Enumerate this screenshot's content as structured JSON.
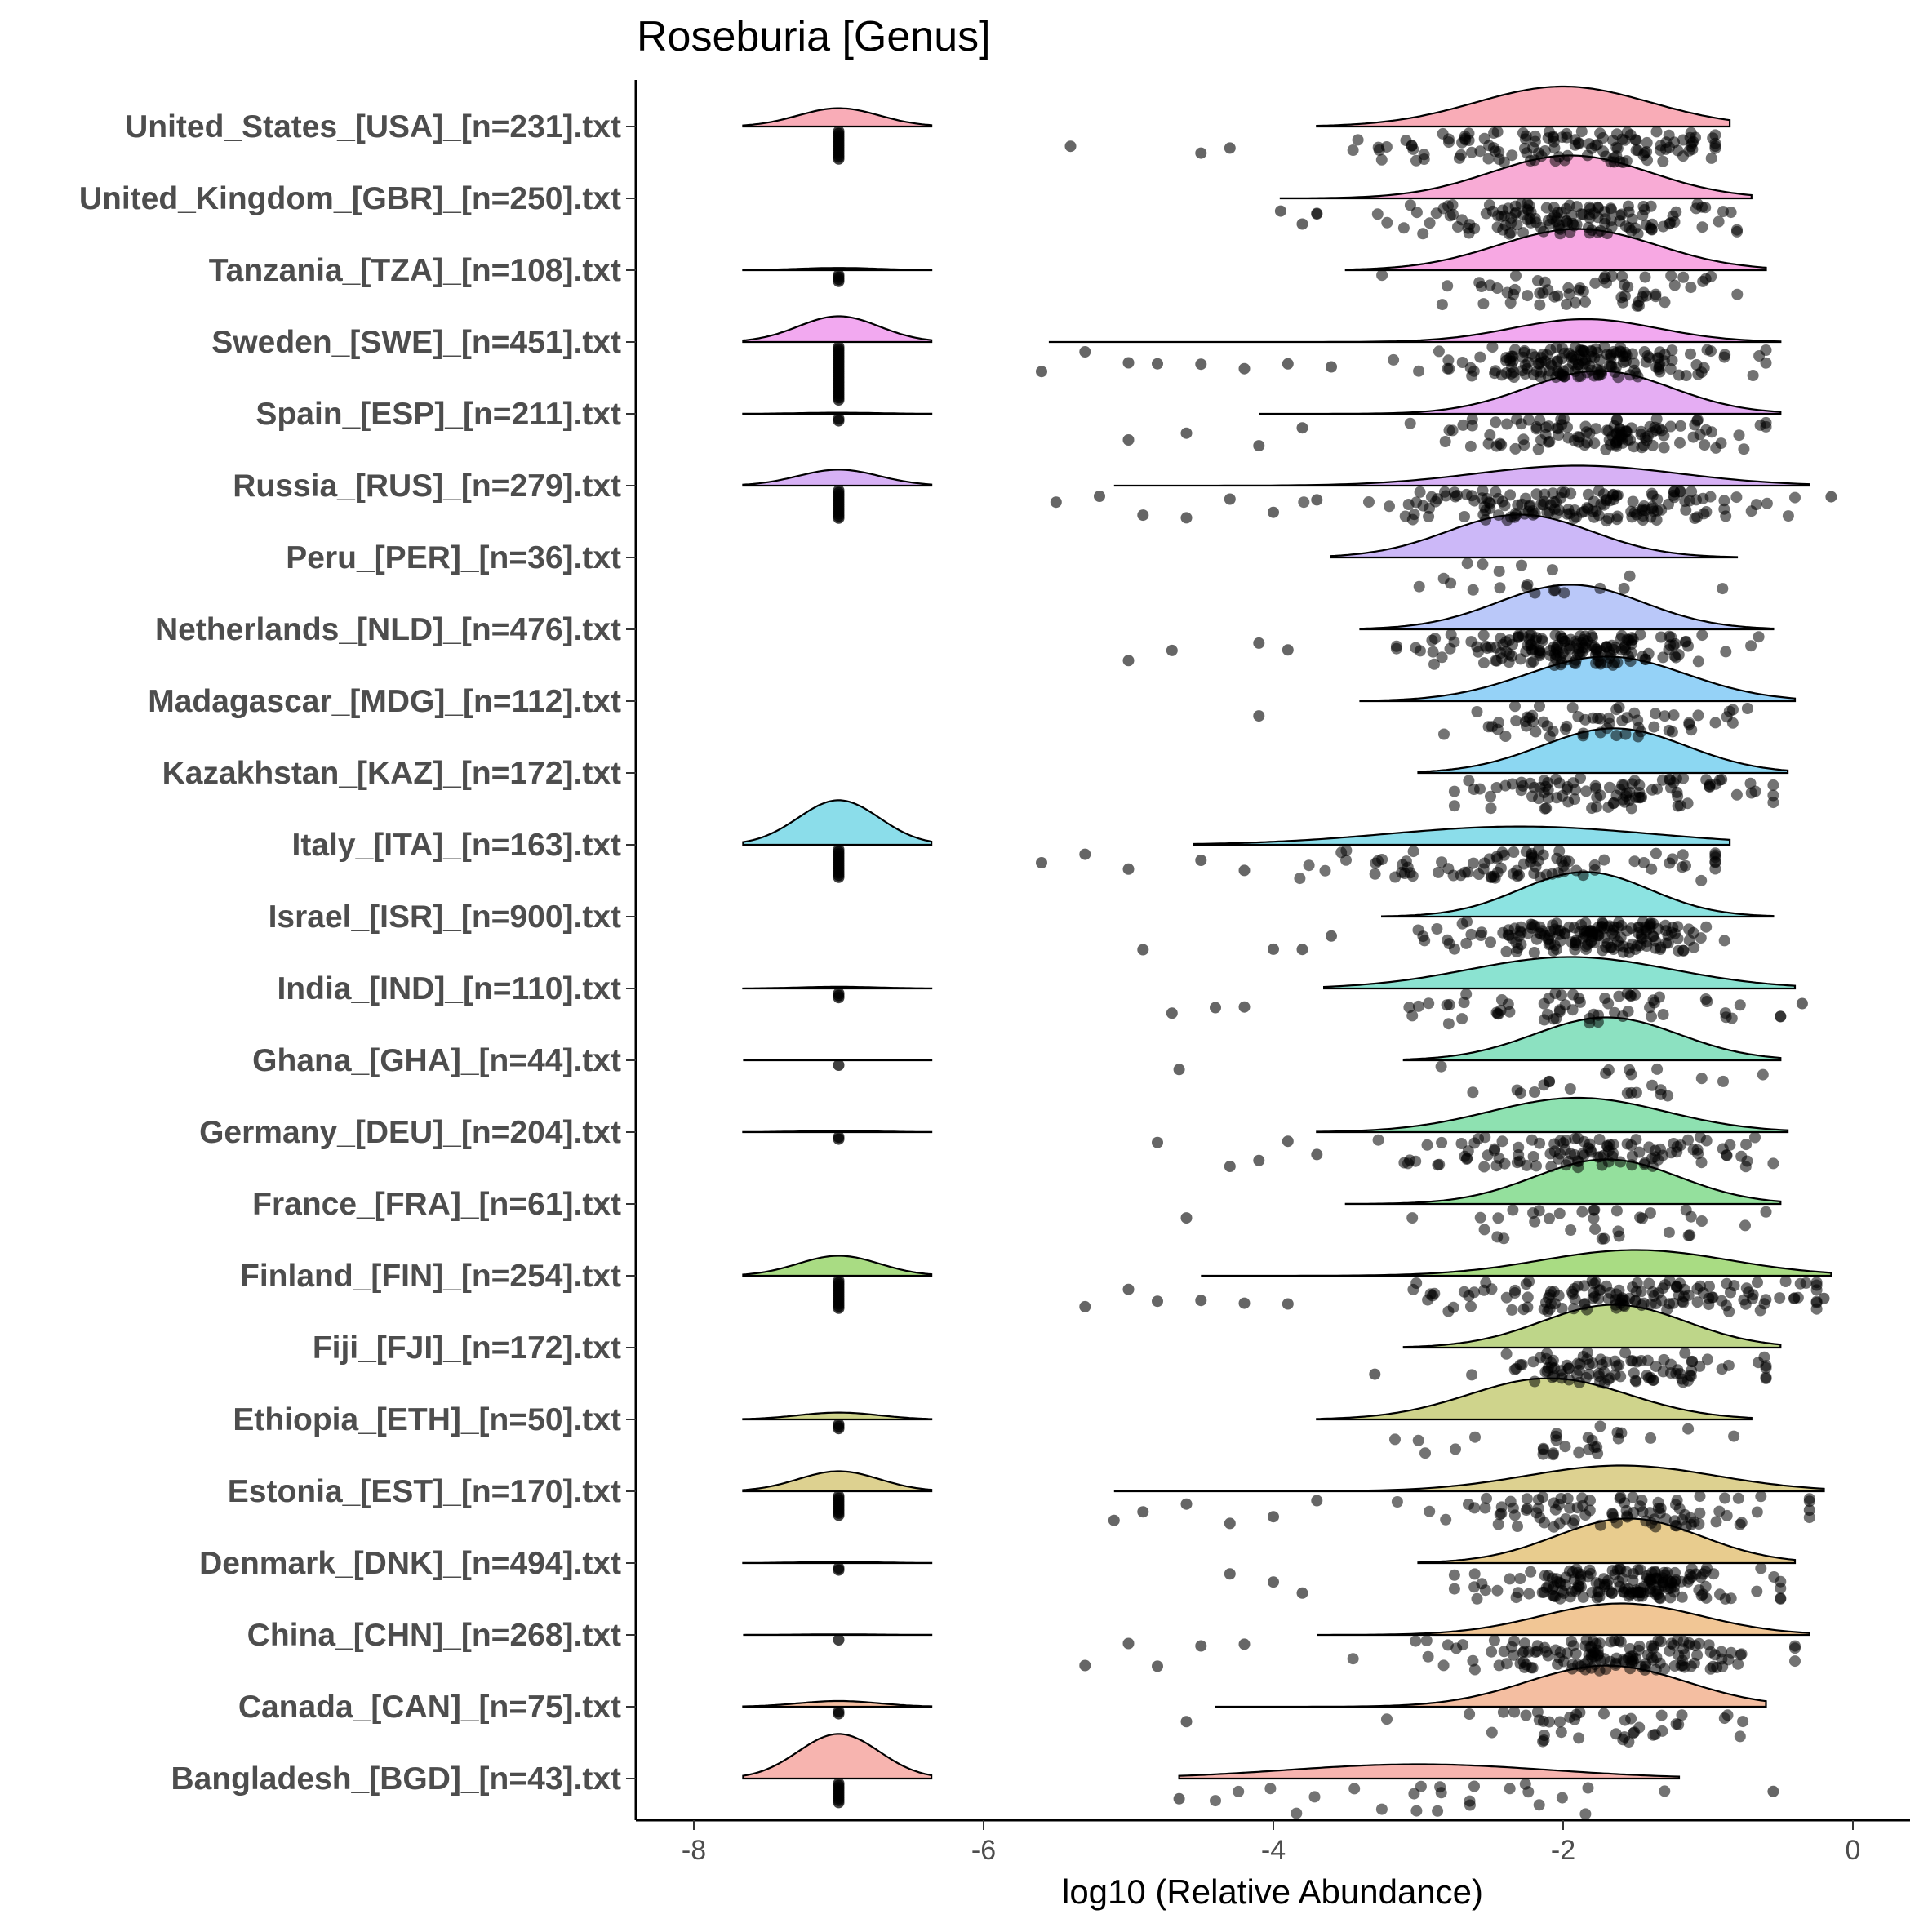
{
  "chart_data": {
    "type": "raincloud",
    "title": "Roseburia [Genus]",
    "xlabel": "log10 (Relative Abundance)",
    "ylabel": "",
    "xlim": [
      -8.4,
      0.4
    ],
    "xticks": [
      -8,
      -6,
      -4,
      -2,
      0
    ],
    "xtick_labels": [
      "-8",
      "-6",
      "-4",
      "-2",
      "0"
    ],
    "zero_value": -7,
    "categories": [
      "United_States_[USA]_[n=231].txt",
      "United_Kingdom_[GBR]_[n=250].txt",
      "Tanzania_[TZA]_[n=108].txt",
      "Sweden_[SWE]_[n=451].txt",
      "Spain_[ESP]_[n=211].txt",
      "Russia_[RUS]_[n=279].txt",
      "Peru_[PER]_[n=36].txt",
      "Netherlands_[NLD]_[n=476].txt",
      "Madagascar_[MDG]_[n=112].txt",
      "Kazakhstan_[KAZ]_[n=172].txt",
      "Italy_[ITA]_[n=163].txt",
      "Israel_[ISR]_[n=900].txt",
      "India_[IND]_[n=110].txt",
      "Ghana_[GHA]_[n=44].txt",
      "Germany_[DEU]_[n=204].txt",
      "France_[FRA]_[n=61].txt",
      "Finland_[FIN]_[n=254].txt",
      "Fiji_[FJI]_[n=172].txt",
      "Ethiopia_[ETH]_[n=50].txt",
      "Estonia_[EST]_[n=170].txt",
      "Denmark_[DNK]_[n=494].txt",
      "China_[CHN]_[n=268].txt",
      "Canada_[CAN]_[n=75].txt",
      "Bangladesh_[BGD]_[n=43].txt"
    ],
    "series": [
      {
        "name": "United_States_[USA]_[n=231].txt",
        "color": "#F8A3AF",
        "n": 231,
        "main_mean": -2.0,
        "main_sd": 0.6,
        "main_min": -3.7,
        "main_max": -0.85,
        "main_peak": 0.7,
        "zero_count": 14,
        "zero_peak": 0.32,
        "outliers": [
          -5.4,
          -4.5,
          -4.3
        ]
      },
      {
        "name": "United_Kingdom_[GBR]_[n=250].txt",
        "color": "#F7A2D0",
        "n": 250,
        "main_mean": -1.95,
        "main_sd": 0.55,
        "main_min": -3.95,
        "main_max": -0.7,
        "main_peak": 0.75,
        "zero_count": 0,
        "zero_peak": 0,
        "outliers": [
          -3.95,
          -3.8,
          -3.7
        ]
      },
      {
        "name": "Tanzania_[TZA]_[n=108].txt",
        "color": "#F69FE0",
        "n": 108,
        "main_mean": -1.9,
        "main_sd": 0.55,
        "main_min": -3.5,
        "main_max": -0.6,
        "main_peak": 0.72,
        "zero_count": 4,
        "zero_peak": 0.04,
        "outliers": []
      },
      {
        "name": "Sweden_[SWE]_[n=451].txt",
        "color": "#F1A0EE",
        "n": 451,
        "main_mean": -1.85,
        "main_sd": 0.5,
        "main_min": -5.55,
        "main_max": -0.5,
        "main_peak": 0.4,
        "zero_count": 26,
        "zero_peak": 0.45,
        "outliers": [
          -5.6,
          -5.3,
          -5.0,
          -4.8,
          -4.5,
          -4.2,
          -3.9,
          -3.6
        ]
      },
      {
        "name": "Spain_[ESP]_[n=211].txt",
        "color": "#E2A4F2",
        "n": 211,
        "main_mean": -1.75,
        "main_sd": 0.5,
        "main_min": -4.1,
        "main_max": -0.5,
        "main_peak": 0.75,
        "zero_count": 2,
        "zero_peak": 0.02,
        "outliers": [
          -5.0,
          -4.6,
          -4.1,
          -3.8
        ]
      },
      {
        "name": "Russia_[RUS]_[n=279].txt",
        "color": "#D3A8F4",
        "n": 279,
        "main_mean": -1.9,
        "main_sd": 0.7,
        "main_min": -5.1,
        "main_max": -0.3,
        "main_peak": 0.35,
        "zero_count": 14,
        "zero_peak": 0.28,
        "outliers": [
          -5.5,
          -5.2,
          -4.9,
          -4.6,
          -4.3,
          -4.0,
          -3.7,
          -0.15
        ]
      },
      {
        "name": "Peru_[PER]_[n=36].txt",
        "color": "#C6B0F7",
        "n": 36,
        "main_mean": -2.3,
        "main_sd": 0.5,
        "main_min": -3.6,
        "main_max": -0.8,
        "main_peak": 0.75,
        "zero_count": 0,
        "zero_peak": 0,
        "outliers": []
      },
      {
        "name": "Netherlands_[NLD]_[n=476].txt",
        "color": "#B3C2F8",
        "n": 476,
        "main_mean": -1.95,
        "main_sd": 0.5,
        "main_min": -3.4,
        "main_max": -0.55,
        "main_peak": 0.78,
        "zero_count": 0,
        "zero_peak": 0,
        "outliers": [
          -5.0,
          -4.7,
          -4.1,
          -3.9
        ]
      },
      {
        "name": "Madagascar_[MDG]_[n=112].txt",
        "color": "#8ACDF6",
        "n": 112,
        "main_mean": -1.7,
        "main_sd": 0.55,
        "main_min": -3.4,
        "main_max": -0.4,
        "main_peak": 0.78,
        "zero_count": 0,
        "zero_peak": 0,
        "outliers": [
          -4.1
        ]
      },
      {
        "name": "Kazakhstan_[KAZ]_[n=172].txt",
        "color": "#7FD3F1",
        "n": 172,
        "main_mean": -1.65,
        "main_sd": 0.5,
        "main_min": -3.0,
        "main_max": -0.45,
        "main_peak": 0.78,
        "zero_count": 0,
        "zero_peak": 0,
        "outliers": []
      },
      {
        "name": "Italy_[ITA]_[n=163].txt",
        "color": "#7ED9E8",
        "n": 163,
        "main_mean": -2.3,
        "main_sd": 0.9,
        "main_min": -4.55,
        "main_max": -0.85,
        "main_peak": 0.32,
        "zero_count": 14,
        "zero_peak": 0.78,
        "outliers": [
          -5.6,
          -5.3,
          -5.0,
          -4.5,
          -4.2
        ]
      },
      {
        "name": "Israel_[ISR]_[n=900].txt",
        "color": "#80E0DE",
        "n": 900,
        "main_mean": -1.85,
        "main_sd": 0.45,
        "main_min": -3.25,
        "main_max": -0.55,
        "main_peak": 0.78,
        "zero_count": 0,
        "zero_peak": 0,
        "outliers": [
          -4.9,
          -4.0,
          -3.8,
          -3.6
        ]
      },
      {
        "name": "India_[IND]_[n=110].txt",
        "color": "#7EE0CC",
        "n": 110,
        "main_mean": -1.95,
        "main_sd": 0.7,
        "main_min": -3.65,
        "main_max": -0.4,
        "main_peak": 0.55,
        "zero_count": 3,
        "zero_peak": 0.03,
        "outliers": [
          -4.7,
          -4.4,
          -4.2,
          -0.35
        ]
      },
      {
        "name": "Ghana_[GHA]_[n=44].txt",
        "color": "#7FDEBA",
        "n": 44,
        "main_mean": -1.7,
        "main_sd": 0.5,
        "main_min": -3.1,
        "main_max": -0.5,
        "main_peak": 0.75,
        "zero_count": 1,
        "zero_peak": 0.01,
        "outliers": [
          -4.65
        ]
      },
      {
        "name": "Germany_[DEU]_[n=204].txt",
        "color": "#82DEA9",
        "n": 204,
        "main_mean": -1.9,
        "main_sd": 0.6,
        "main_min": -3.7,
        "main_max": -0.45,
        "main_peak": 0.6,
        "zero_count": 2,
        "zero_peak": 0.02,
        "outliers": [
          -4.8,
          -4.3,
          -4.1,
          -3.9,
          -3.7
        ]
      },
      {
        "name": "France_[FRA]_[n=61].txt",
        "color": "#88DD92",
        "n": 61,
        "main_mean": -1.7,
        "main_sd": 0.5,
        "main_min": -3.5,
        "main_max": -0.5,
        "main_peak": 0.78,
        "zero_count": 0,
        "zero_peak": 0,
        "outliers": [
          -4.6
        ]
      },
      {
        "name": "Finland_[FIN]_[n=254].txt",
        "color": "#A0D875",
        "n": 254,
        "main_mean": -1.5,
        "main_sd": 0.65,
        "main_min": -4.5,
        "main_max": -0.15,
        "main_peak": 0.45,
        "zero_count": 14,
        "zero_peak": 0.35,
        "outliers": [
          -5.3,
          -5.0,
          -4.8,
          -4.5,
          -4.2,
          -3.9,
          -0.2
        ]
      },
      {
        "name": "Fiji_[FJI]_[n=172].txt",
        "color": "#B7D27C",
        "n": 172,
        "main_mean": -1.65,
        "main_sd": 0.5,
        "main_min": -3.1,
        "main_max": -0.5,
        "main_peak": 0.75,
        "zero_count": 0,
        "zero_peak": 0,
        "outliers": [
          -3.3
        ]
      },
      {
        "name": "Ethiopia_[ETH]_[n=50].txt",
        "color": "#CACF80",
        "n": 50,
        "main_mean": -2.1,
        "main_sd": 0.55,
        "main_min": -3.7,
        "main_max": -0.7,
        "main_peak": 0.72,
        "zero_count": 3,
        "zero_peak": 0.12,
        "outliers": []
      },
      {
        "name": "Estonia_[EST]_[n=170].txt",
        "color": "#D9CC84",
        "n": 170,
        "main_mean": -1.6,
        "main_sd": 0.65,
        "main_min": -5.1,
        "main_max": -0.2,
        "main_peak": 0.45,
        "zero_count": 10,
        "zero_peak": 0.35,
        "outliers": [
          -5.1,
          -4.9,
          -4.6,
          -4.3,
          -4.0,
          -3.7,
          -0.3
        ]
      },
      {
        "name": "Denmark_[DNK]_[n=494].txt",
        "color": "#E6C782",
        "n": 494,
        "main_mean": -1.55,
        "main_sd": 0.5,
        "main_min": -3.0,
        "main_max": -0.4,
        "main_peak": 0.78,
        "zero_count": 2,
        "zero_peak": 0.02,
        "outliers": [
          -4.3,
          -4.0,
          -3.8
        ]
      },
      {
        "name": "China_[CHN]_[n=268].txt",
        "color": "#EFC08A",
        "n": 268,
        "main_mean": -1.6,
        "main_sd": 0.55,
        "main_min": -3.7,
        "main_max": -0.3,
        "main_peak": 0.55,
        "zero_count": 1,
        "zero_peak": 0.01,
        "outliers": [
          -5.3,
          -5.0,
          -4.8,
          -4.5,
          -4.2
        ]
      },
      {
        "name": "Canada_[CAN]_[n=75].txt",
        "color": "#F3B797",
        "n": 75,
        "main_mean": -1.7,
        "main_sd": 0.55,
        "main_min": -4.4,
        "main_max": -0.6,
        "main_peak": 0.72,
        "zero_count": 2,
        "zero_peak": 0.1,
        "outliers": [
          -4.6
        ]
      },
      {
        "name": "Bangladesh_[BGD]_[n=43].txt",
        "color": "#F6ACA6",
        "n": 43,
        "main_mean": -3.0,
        "main_sd": 0.9,
        "main_min": -4.65,
        "main_max": -1.2,
        "main_peak": 0.25,
        "zero_count": 10,
        "zero_peak": 0.78,
        "outliers": [
          -4.65,
          -0.55
        ]
      }
    ]
  }
}
